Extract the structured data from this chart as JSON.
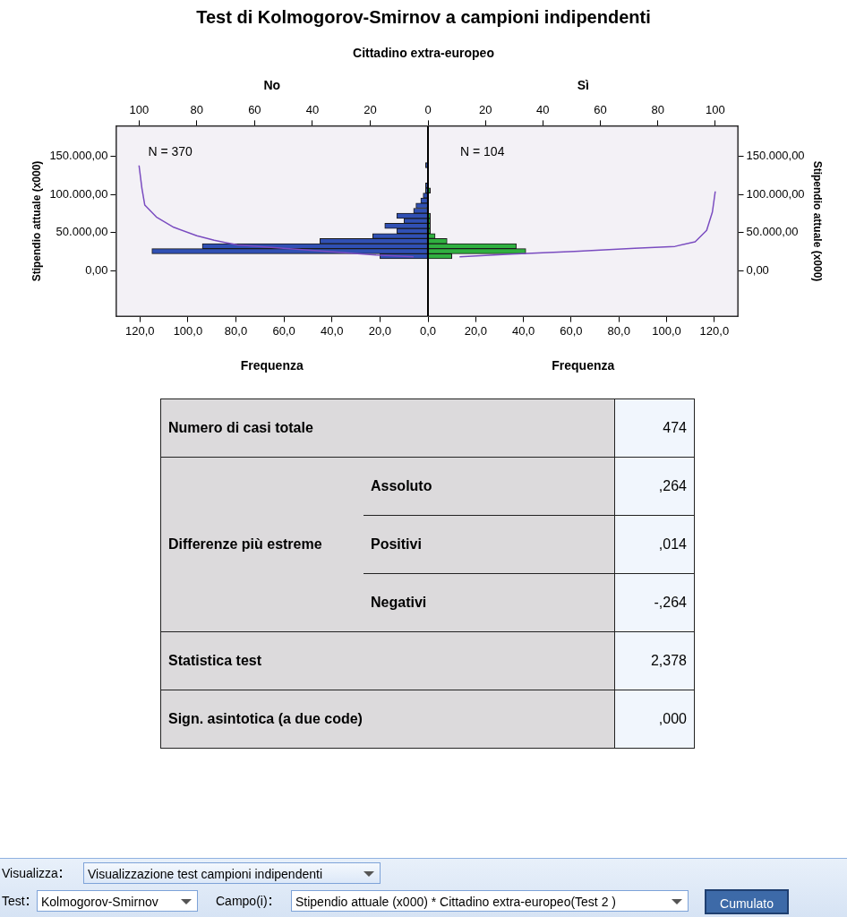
{
  "chart_data": [
    {
      "type": "histogram",
      "title": "Test di Kolmogorov-Smirnov a campioni indipendenti",
      "subtitle": "Cittadino extra-europeo",
      "orientation": "horizontal",
      "x2label": "No",
      "xlabel": "Frequenza",
      "ylabel": "Stipendio attuale (x000)",
      "bins": [
        15750,
        22375,
        29000,
        35625,
        42250,
        48875,
        55500,
        62125,
        68750,
        75375,
        82000,
        88625,
        95250,
        101875,
        108500,
        115125,
        121750,
        128375,
        135000,
        141625
      ],
      "series": [
        {
          "type": "histogram",
          "color": "#3050b4",
          "values": [
            20,
            115,
            94,
            45,
            23,
            13,
            18,
            10,
            13,
            6,
            5,
            3,
            2,
            1,
            1,
            0,
            0,
            0,
            1
          ]
        },
        {
          "type": "line",
          "axis": "x2",
          "color": "#7a4cc0",
          "x": [
            18500,
            20600,
            25000,
            29500,
            34000,
            40000,
            46000,
            57000,
            70500,
            86000,
            108000,
            138000
          ],
          "values": [
            5,
            18,
            34,
            50,
            66,
            74,
            80,
            88,
            94,
            98,
            99,
            100
          ]
        }
      ],
      "xlim": [
        130,
        0
      ],
      "xticks": [
        {
          "value": 120,
          "label": "120,0"
        },
        {
          "value": 100,
          "label": "100,0"
        },
        {
          "value": 80,
          "label": "80,0"
        },
        {
          "value": 60,
          "label": "60,0"
        },
        {
          "value": 40,
          "label": "40,0"
        },
        {
          "value": 20,
          "label": "20,0"
        },
        {
          "value": 0,
          "label": "0,0"
        }
      ],
      "x2lim": [
        108,
        0
      ],
      "x2ticks": [
        100,
        80,
        60,
        40,
        20,
        0
      ],
      "ylim": [
        -60000,
        190000
      ],
      "yticks": [
        {
          "value": 0,
          "label": "0,00"
        },
        {
          "value": 50000,
          "label": "50.000,00"
        },
        {
          "value": 100000,
          "label": "100.000,00"
        },
        {
          "value": 150000,
          "label": "150.000,00"
        }
      ],
      "annotations": [
        "N = 370"
      ]
    },
    {
      "type": "histogram",
      "orientation": "horizontal",
      "x2label": "Sì",
      "xlabel": "Frequenza",
      "ylabel": "Stipendio attuale (x000)",
      "bins": [
        15750,
        22375,
        29000,
        35625,
        42250,
        48875,
        55500,
        62125,
        68750,
        75375,
        82000,
        88625,
        95250,
        101875,
        108500
      ],
      "series": [
        {
          "type": "histogram",
          "color": "#30b040",
          "values": [
            10,
            41,
            37,
            8,
            3,
            1,
            1,
            1,
            1,
            0,
            0,
            0,
            0,
            1
          ]
        },
        {
          "type": "line",
          "axis": "x2",
          "color": "#7a4cc0",
          "x": [
            18500,
            22000,
            25500,
            29500,
            32000,
            38000,
            53000,
            77000,
            104000
          ],
          "values": [
            11,
            29,
            51,
            72,
            86,
            93,
            97,
            99,
            100
          ]
        }
      ],
      "xlim": [
        0,
        130
      ],
      "xticks": [
        {
          "value": 20,
          "label": "20,0"
        },
        {
          "value": 40,
          "label": "40,0"
        },
        {
          "value": 60,
          "label": "60,0"
        },
        {
          "value": 80,
          "label": "80,0"
        },
        {
          "value": 100,
          "label": "100,0"
        },
        {
          "value": 120,
          "label": "120,0"
        }
      ],
      "x2lim": [
        0,
        108
      ],
      "x2ticks": [
        20,
        40,
        60,
        80,
        100
      ],
      "ylim": [
        -60000,
        190000
      ],
      "yticks": [
        {
          "value": 0,
          "label": "0,00"
        },
        {
          "value": 50000,
          "label": "50.000,00"
        },
        {
          "value": 100000,
          "label": "100.000,00"
        },
        {
          "value": 150000,
          "label": "150.000,00"
        }
      ],
      "annotations": [
        "N = 104"
      ]
    },
    {
      "type": "other",
      "categories": [
        "Numero di casi totale",
        "Assoluto",
        "Positivi",
        "Negativi",
        "Statistica test",
        "Sign. asintotica (a due code)"
      ],
      "annotations": [
        "Differenze più estreme",
        "474",
        ",264",
        ",014",
        "-,264",
        "2,378",
        ",000"
      ]
    },
    {
      "type": "other",
      "categories": [
        "Visualizza",
        "Test",
        "Campo(i)"
      ],
      "annotations": [
        "Visualizzazione test campioni indipendenti",
        "Kolmogorov-Smirnov",
        "Stipendio attuale (x000) * Cittadino extra-europeo(Test 2 )",
        "Cumulato"
      ]
    }
  ]
}
